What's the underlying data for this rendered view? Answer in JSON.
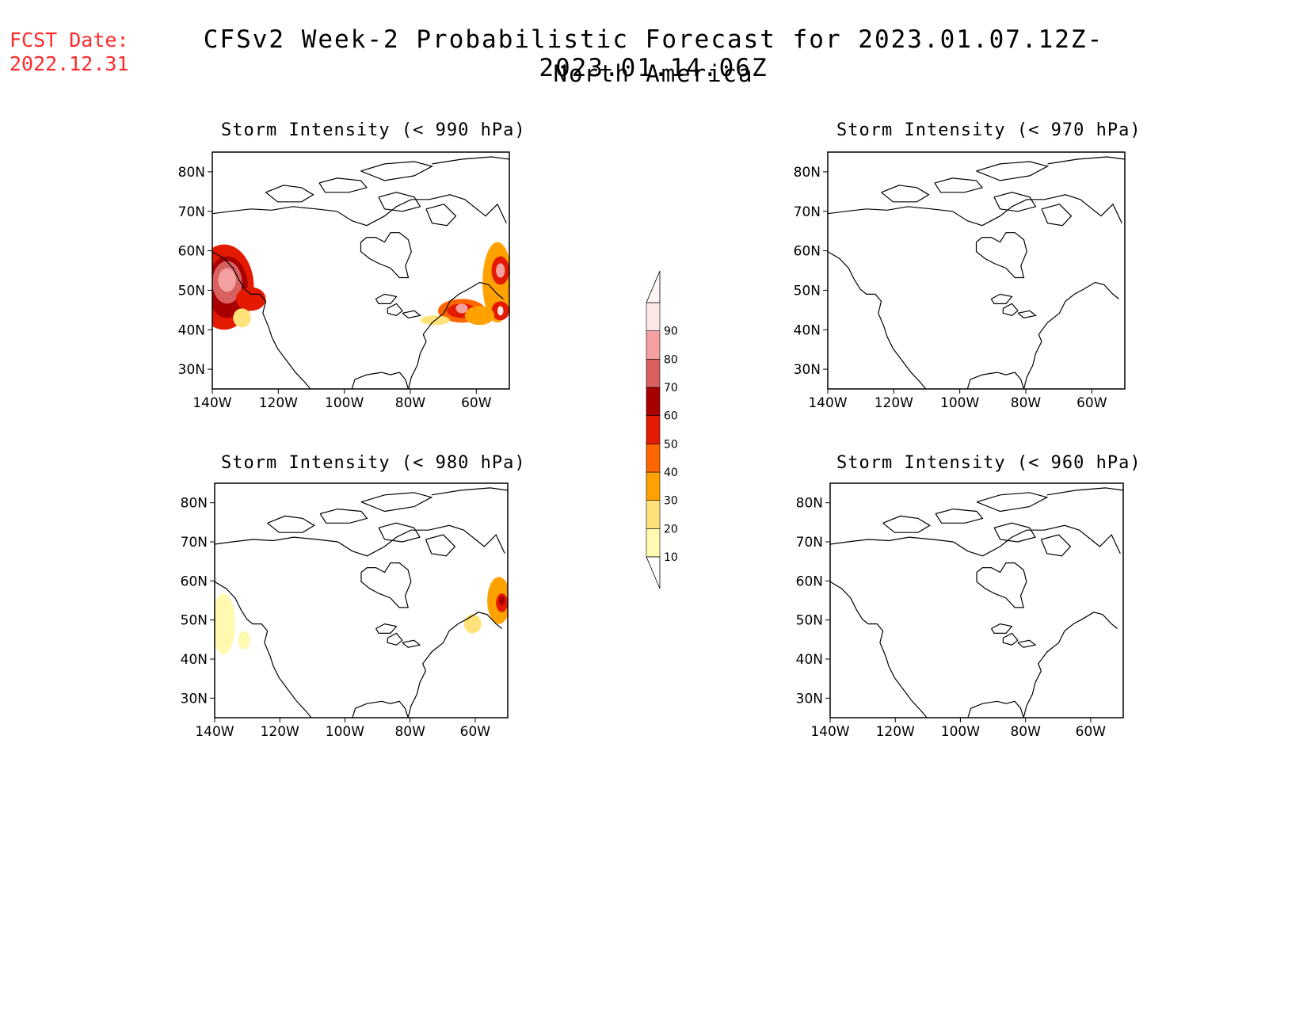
{
  "header": {
    "fcst_label": "FCST Date:",
    "fcst_date": "2022.12.31",
    "title": "CFSv2 Week-2 Probabilistic Forecast for 2023.01.07.12Z-2023.01.14.06Z",
    "subtitle": "North America"
  },
  "panels": [
    {
      "title": "Storm Intensity (< 990 hPa)",
      "threshold_hPa": 990
    },
    {
      "title": "Storm Intensity (< 970 hPa)",
      "threshold_hPa": 970
    },
    {
      "title": "Storm Intensity (< 980 hPa)",
      "threshold_hPa": 980
    },
    {
      "title": "Storm Intensity (< 960 hPa)",
      "threshold_hPa": 960
    }
  ],
  "axes": {
    "lat_ticks": [
      "30N",
      "40N",
      "50N",
      "60N",
      "70N",
      "80N"
    ],
    "lon_ticks": [
      "140W",
      "120W",
      "100W",
      "80W",
      "60W"
    ],
    "lat_range": [
      25,
      85
    ],
    "lon_range": [
      -140,
      -50
    ]
  },
  "colorbar": {
    "levels": [
      "10",
      "20",
      "30",
      "40",
      "50",
      "60",
      "70",
      "80",
      "90"
    ],
    "colors": [
      "#fffab0",
      "#ffe37a",
      "#ffa200",
      "#ff6600",
      "#e31a00",
      "#a80000",
      "#d96060",
      "#f2a0a0",
      "#fde6e6"
    ]
  }
}
